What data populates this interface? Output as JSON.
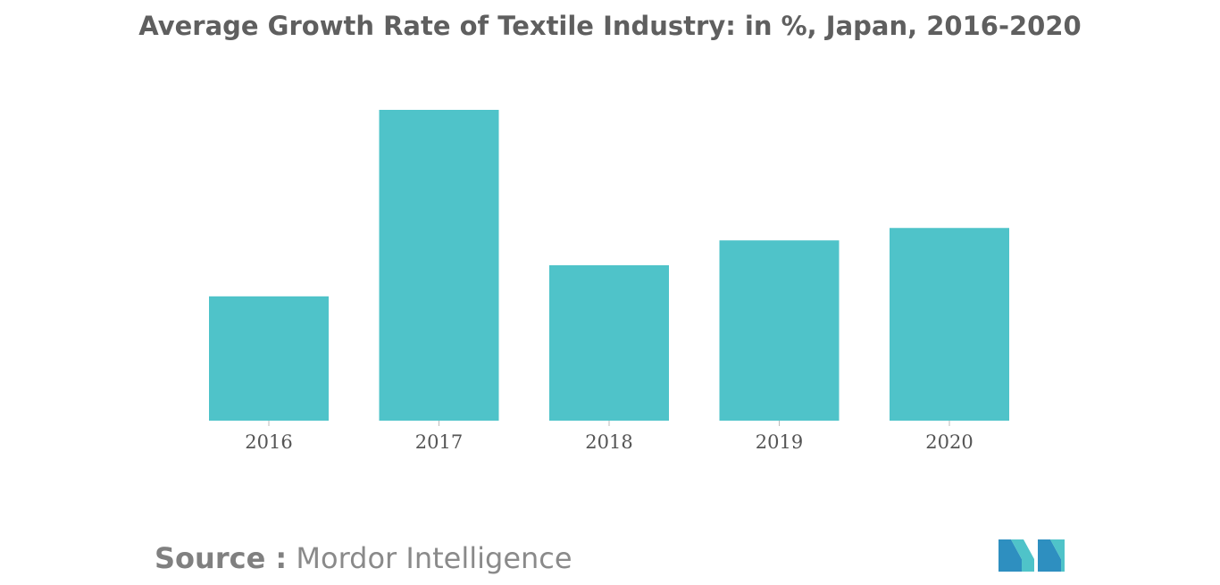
{
  "chart_data": {
    "type": "bar",
    "title": "Average Growth Rate of Textile Industry: in %, Japan, 2016-2020",
    "categories": [
      "2016",
      "2017",
      "2018",
      "2019",
      "2020"
    ],
    "values": [
      2.0,
      5.0,
      2.5,
      2.9,
      3.1
    ],
    "xlabel": "",
    "ylabel": "",
    "ylim": [
      0,
      5.2
    ],
    "grid": false,
    "legend": "none",
    "bar_color": "#4fc3c9"
  },
  "source": {
    "prefix": "Source :",
    "name": "Mordor Intelligence"
  },
  "logo": {
    "color_dark": "#2e8fc0",
    "color_light": "#4fc3c9"
  }
}
